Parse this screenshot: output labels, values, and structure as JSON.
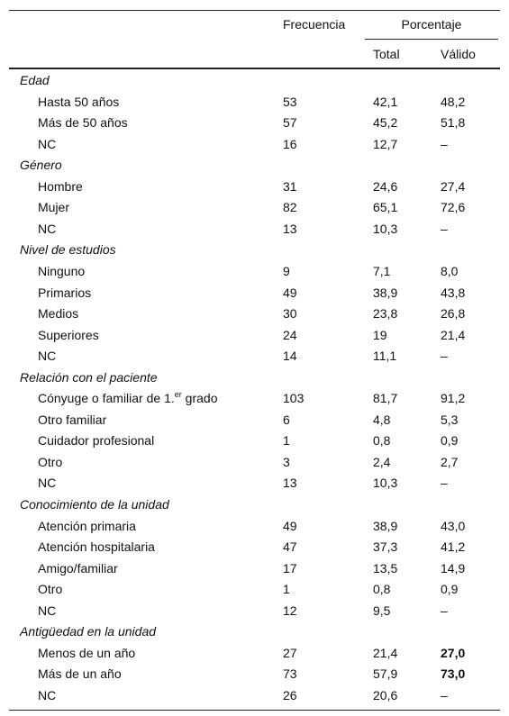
{
  "header": {
    "frecuencia": "Frecuencia",
    "porcentaje": "Porcentaje",
    "total": "Total",
    "valido": "Válido"
  },
  "groups": [
    {
      "title": "Edad",
      "rows": [
        {
          "label": "Hasta 50 años",
          "frecuencia": "53",
          "total": "42,1",
          "valido": "48,2"
        },
        {
          "label": "Más de 50 años",
          "frecuencia": "57",
          "total": "45,2",
          "valido": "51,8"
        },
        {
          "label": "NC",
          "frecuencia": "16",
          "total": "12,7",
          "valido": "–"
        }
      ]
    },
    {
      "title": "Género",
      "rows": [
        {
          "label": "Hombre",
          "frecuencia": "31",
          "total": "24,6",
          "valido": "27,4"
        },
        {
          "label": "Mujer",
          "frecuencia": "82",
          "total": "65,1",
          "valido": "72,6"
        },
        {
          "label": "NC",
          "frecuencia": "13",
          "total": "10,3",
          "valido": "–"
        }
      ]
    },
    {
      "title": "Nivel de estudios",
      "rows": [
        {
          "label": "Ninguno",
          "frecuencia": "9",
          "total": "7,1",
          "valido": "8,0"
        },
        {
          "label": "Primarios",
          "frecuencia": "49",
          "total": "38,9",
          "valido": "43,8"
        },
        {
          "label": "Medios",
          "frecuencia": "30",
          "total": "23,8",
          "valido": "26,8"
        },
        {
          "label": "Superiores",
          "frecuencia": "24",
          "total": "19",
          "valido": "21,4"
        },
        {
          "label": "NC",
          "frecuencia": "14",
          "total": "11,1",
          "valido": "–"
        }
      ]
    },
    {
      "title": "Relación con el paciente",
      "rows": [
        {
          "label": "Cónyuge o familiar de 1.",
          "label_sup": "er",
          "label_after": " grado",
          "frecuencia": "103",
          "total": "81,7",
          "valido": "91,2"
        },
        {
          "label": "Otro familiar",
          "frecuencia": "6",
          "total": "4,8",
          "valido": "5,3"
        },
        {
          "label": "Cuidador profesional",
          "frecuencia": "1",
          "total": "0,8",
          "valido": "0,9"
        },
        {
          "label": "Otro",
          "frecuencia": "3",
          "total": "2,4",
          "valido": "2,7"
        },
        {
          "label": "NC",
          "frecuencia": "13",
          "total": "10,3",
          "valido": "–"
        }
      ]
    },
    {
      "title": "Conocimiento de la unidad",
      "rows": [
        {
          "label": "Atención primaria",
          "frecuencia": "49",
          "total": "38,9",
          "valido": "43,0"
        },
        {
          "label": "Atención hospitalaria",
          "frecuencia": "47",
          "total": "37,3",
          "valido": "41,2"
        },
        {
          "label": "Amigo/familiar",
          "frecuencia": "17",
          "total": "13,5",
          "valido": "14,9"
        },
        {
          "label": "Otro",
          "frecuencia": "1",
          "total": "0,8",
          "valido": "0,9"
        },
        {
          "label": "NC",
          "frecuencia": "12",
          "total": "9,5",
          "valido": "–"
        }
      ]
    },
    {
      "title": "Antigüedad en la unidad",
      "rows": [
        {
          "label": "Menos de un año",
          "frecuencia": "27",
          "total": "21,4",
          "valido": "27,0",
          "bold": true
        },
        {
          "label": "Más de un año",
          "frecuencia": "73",
          "total": "57,9",
          "valido": "73,0",
          "bold": true
        },
        {
          "label": "NC",
          "frecuencia": "26",
          "total": "20,6",
          "valido": "–"
        }
      ]
    }
  ]
}
